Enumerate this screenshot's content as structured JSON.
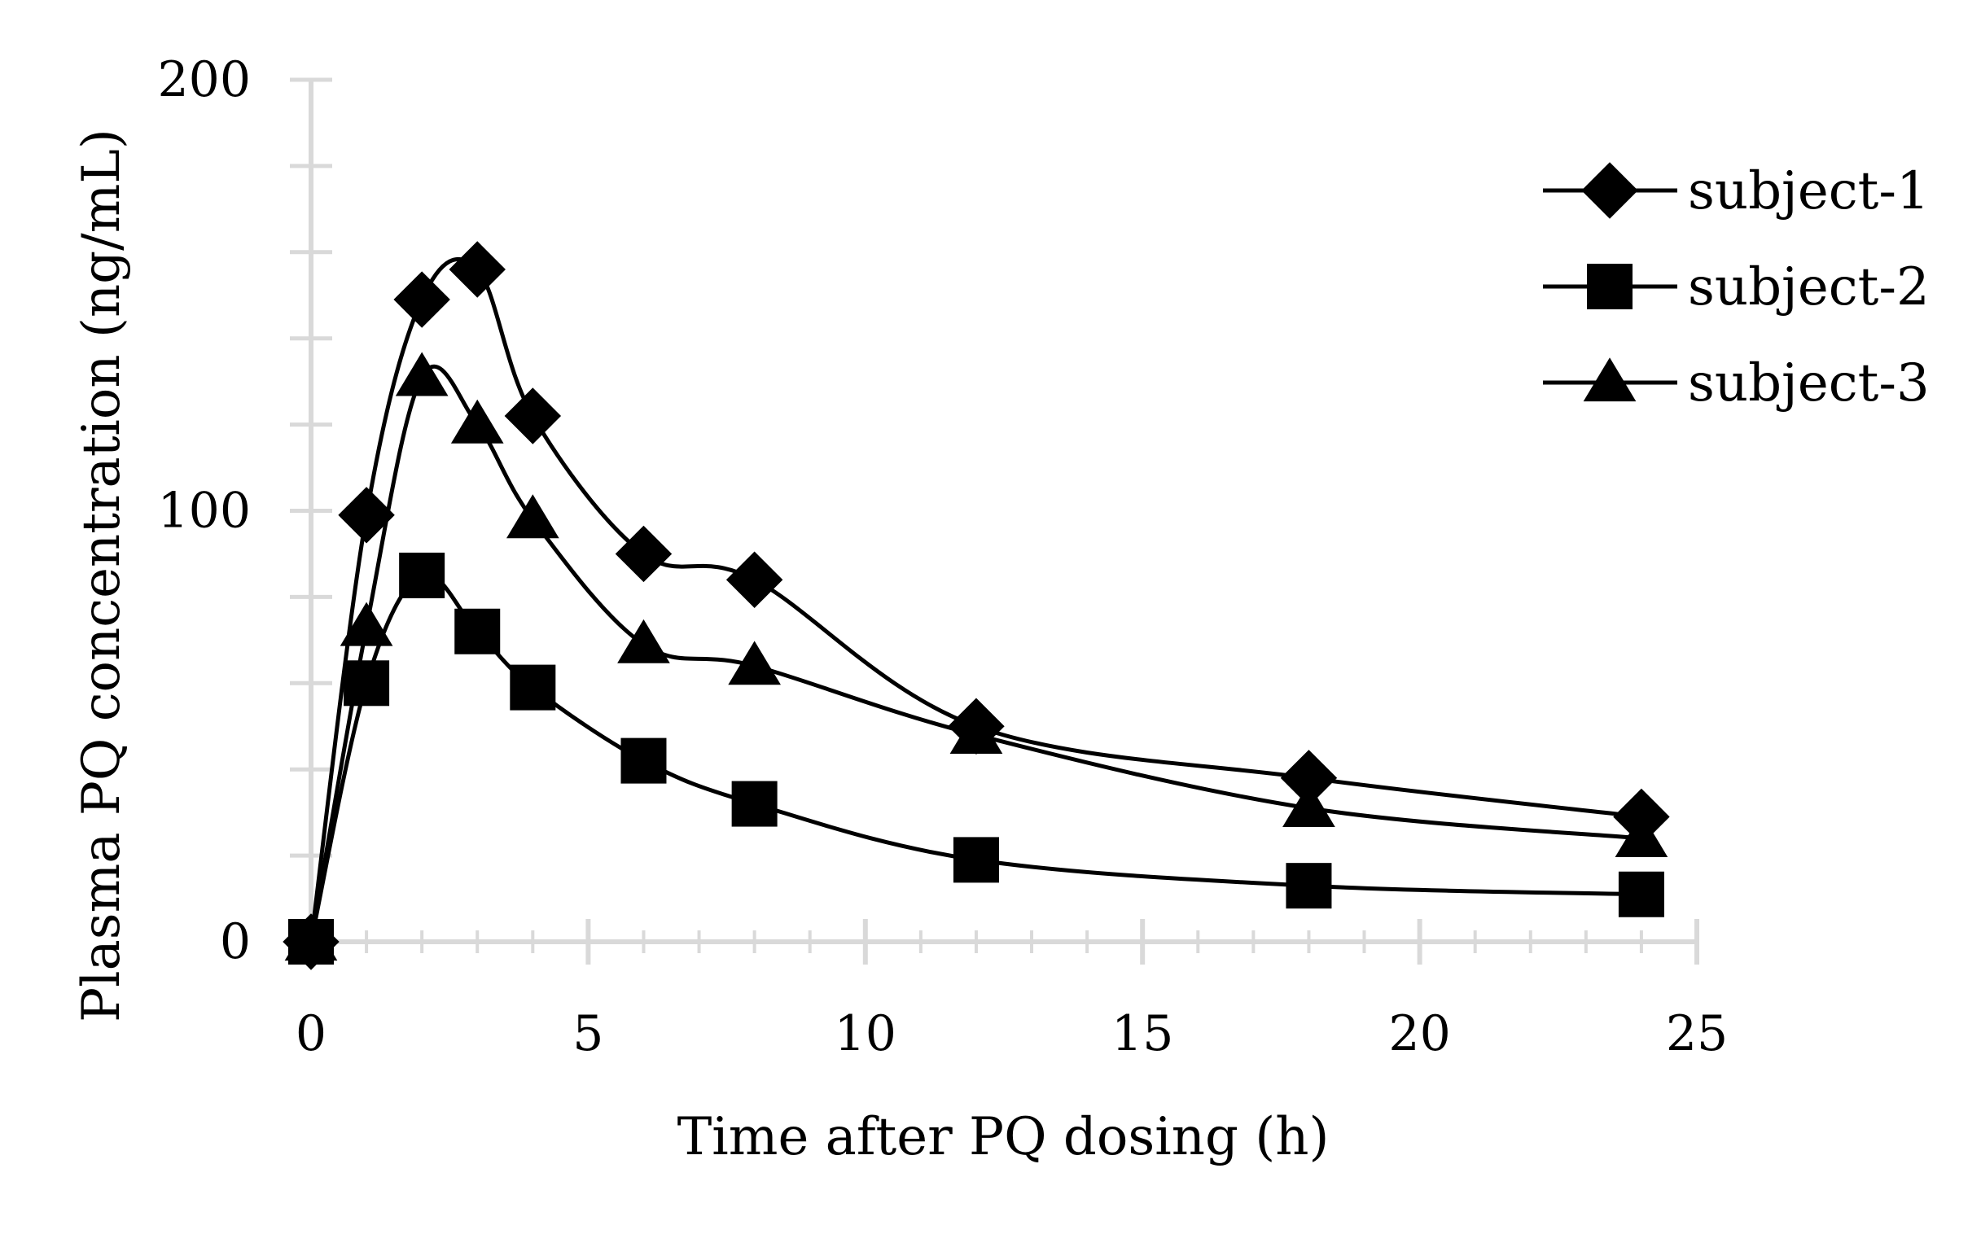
{
  "chart_data": {
    "type": "line",
    "title": "",
    "xlabel": "Time after PQ dosing (h)",
    "ylabel": "Plasma PQ concentration (ng/mL)",
    "xlim": [
      0,
      25
    ],
    "ylim": [
      0,
      200
    ],
    "x_ticks": [
      0,
      5,
      10,
      15,
      20,
      25
    ],
    "y_ticks": [
      0,
      100,
      200
    ],
    "x_tick_labels": [
      "0",
      "5",
      "10",
      "15",
      "20",
      "25"
    ],
    "y_tick_labels": [
      "0",
      "100",
      "200"
    ],
    "grid": true,
    "legend_position": "top-right",
    "line_color": "#000000",
    "grid_color": "#d9d9d9",
    "series": [
      {
        "name": "subject-1",
        "marker": "diamond",
        "x": [
          0,
          1,
          2,
          3,
          4,
          6,
          8,
          12,
          18,
          24
        ],
        "values": [
          0,
          99,
          149,
          156,
          122,
          90,
          84,
          50,
          38,
          29
        ]
      },
      {
        "name": "subject-2",
        "marker": "square",
        "x": [
          0,
          1,
          2,
          3,
          4,
          6,
          8,
          12,
          18,
          24
        ],
        "values": [
          0,
          60,
          85,
          72,
          59,
          42,
          32,
          19,
          13,
          11
        ]
      },
      {
        "name": "subject-3",
        "marker": "triangle",
        "x": [
          0,
          1,
          2,
          3,
          4,
          6,
          8,
          12,
          18,
          24
        ],
        "values": [
          0,
          73,
          131,
          120,
          98,
          69,
          64,
          48,
          31,
          24
        ]
      }
    ]
  }
}
